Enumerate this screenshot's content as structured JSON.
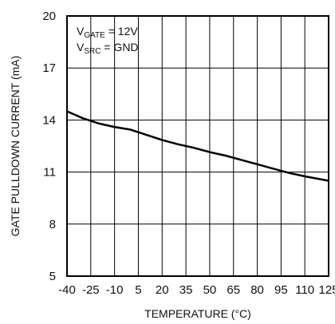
{
  "chart_data": {
    "type": "line",
    "xlabel": "TEMPERATURE (°C)",
    "ylabel": "GATE PULLDOWN CURRENT (mA)",
    "xlim": [
      -40,
      125
    ],
    "ylim": [
      5,
      20
    ],
    "x_ticks": [
      "-40",
      "-25",
      "-10",
      "5",
      "20",
      "35",
      "50",
      "65",
      "80",
      "95",
      "110",
      "125"
    ],
    "x_tick_values": [
      -40,
      -25,
      -10,
      5,
      20,
      35,
      50,
      65,
      80,
      95,
      110,
      125
    ],
    "y_ticks": [
      "5",
      "8",
      "11",
      "14",
      "17",
      "20"
    ],
    "y_tick_values": [
      5,
      8,
      11,
      14,
      17,
      20
    ],
    "grid": true,
    "annotations": [
      {
        "main": "V",
        "sub": "GATE",
        "rest": " = 12V"
      },
      {
        "main": "V",
        "sub": "SRC",
        "rest": " = GND"
      }
    ],
    "series": [
      {
        "x": [
          -40,
          -30,
          -20,
          -10,
          0,
          10,
          20,
          30,
          40,
          50,
          60,
          70,
          80,
          90,
          100,
          110,
          125
        ],
        "y": [
          14.5,
          14.1,
          13.8,
          13.6,
          13.45,
          13.15,
          12.85,
          12.6,
          12.4,
          12.15,
          11.95,
          11.7,
          11.45,
          11.2,
          10.95,
          10.75,
          10.5
        ]
      }
    ]
  }
}
